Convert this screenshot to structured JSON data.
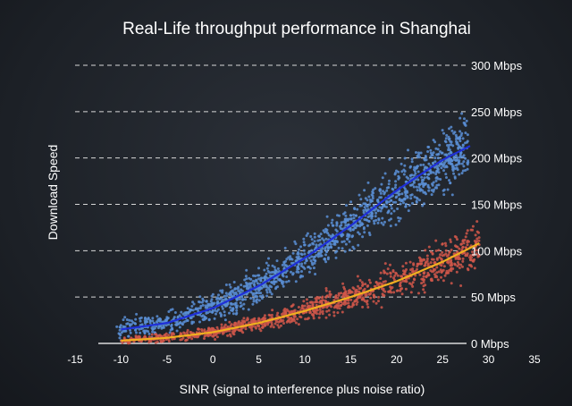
{
  "chart_data": {
    "type": "scatter",
    "title": "Real-Life throughput performance in Shanghai",
    "xlabel": "SINR (signal to interference plus noise ratio)",
    "ylabel": "Download Speed",
    "xlim": [
      -15,
      35
    ],
    "ylim": [
      0,
      300
    ],
    "x_ticks": [
      "-15",
      "-10",
      "-5",
      "0",
      "5",
      "10",
      "15",
      "20",
      "25",
      "30",
      "35"
    ],
    "y_ticks": [
      {
        "value": 0,
        "label": "0 Mbps"
      },
      {
        "value": 50,
        "label": "50 Mbps"
      },
      {
        "value": 100,
        "label": "100 Mbps"
      },
      {
        "value": 150,
        "label": "150 Mbps"
      },
      {
        "value": 200,
        "label": "200 Mbps"
      },
      {
        "value": 250,
        "label": "250 Mbps"
      },
      {
        "value": 300,
        "label": "300 Mbps"
      }
    ],
    "series": [
      {
        "name": "blue-scatter",
        "color": "#5b8fd6",
        "trend_color": "#1f2fd8",
        "trend": {
          "x": [
            -10,
            -5,
            0,
            5,
            10,
            15,
            20,
            25,
            28
          ],
          "y": [
            15,
            22,
            38,
            62,
            92,
            127,
            165,
            198,
            213
          ]
        }
      },
      {
        "name": "red-scatter",
        "color": "#d0574a",
        "trend_color": "#f0b020",
        "trend": {
          "x": [
            -10,
            -5,
            0,
            5,
            10,
            15,
            20,
            25,
            29
          ],
          "y": [
            3,
            6,
            12,
            22,
            35,
            50,
            67,
            88,
            108
          ]
        }
      }
    ]
  }
}
